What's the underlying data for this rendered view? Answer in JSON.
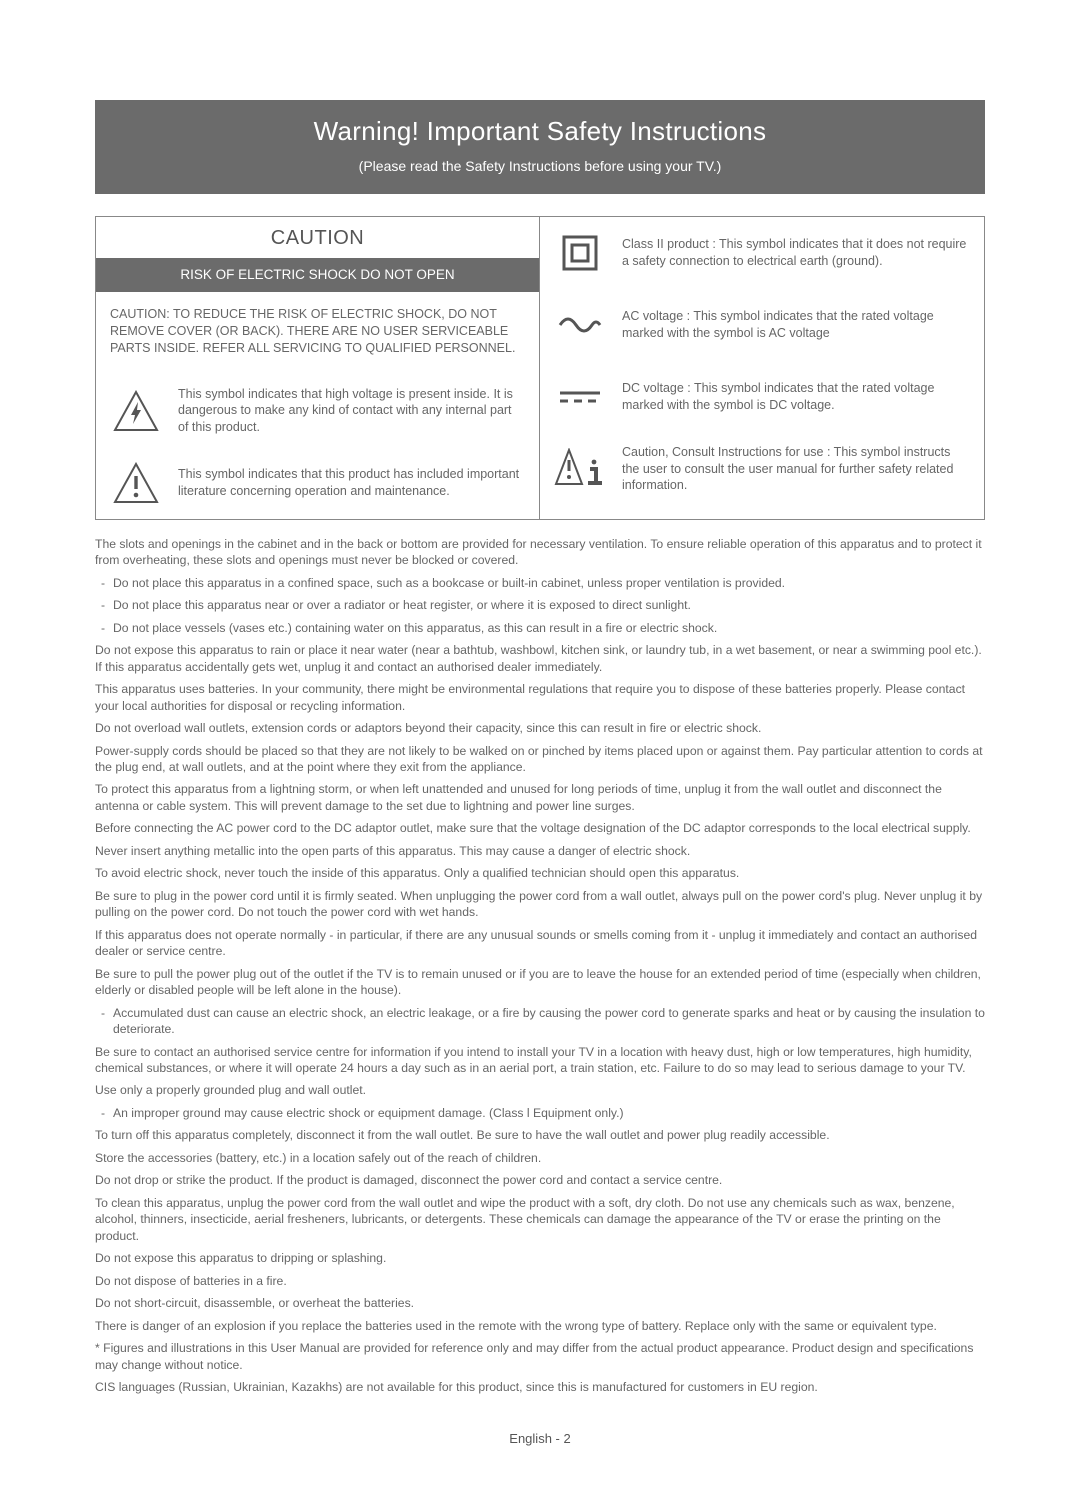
{
  "banner": {
    "title": "Warning! Important Safety Instructions",
    "subtitle": "(Please read the Safety Instructions before using your TV.)"
  },
  "caution": {
    "heading": "CAUTION",
    "bar": "RISK OF ELECTRIC SHOCK DO NOT OPEN",
    "text": "CAUTION: TO REDUCE THE RISK OF ELECTRIC SHOCK, DO NOT REMOVE COVER (OR BACK). THERE ARE NO USER SERVICEABLE PARTS INSIDE. REFER ALL SERVICING TO QUALIFIED PERSONNEL."
  },
  "left_symbols": [
    {
      "icon": "triangle-bolt",
      "text": "This symbol indicates that high voltage is present inside. It is dangerous to make any kind of contact with any internal part of this product."
    },
    {
      "icon": "triangle-excl",
      "text": "This symbol indicates that this product has included important literature concerning operation and maintenance."
    }
  ],
  "right_symbols": [
    {
      "icon": "class2",
      "text": "Class II product : This symbol indicates that it does not require a safety connection to electrical earth (ground)."
    },
    {
      "icon": "ac",
      "text": "AC voltage : This symbol indicates that the rated voltage marked with the symbol is AC voltage"
    },
    {
      "icon": "dc",
      "text": "DC voltage : This symbol indicates that the rated voltage marked with the symbol is DC voltage."
    },
    {
      "icon": "caution-info",
      "text": "Caution, Consult Instructions for use : This symbol instructs the user to consult the user manual for further safety related information."
    }
  ],
  "paragraphs": [
    {
      "t": "The slots and openings in the cabinet and in the back or bottom are provided for necessary ventilation. To ensure reliable operation of this apparatus and to protect it from overheating, these slots and openings must never be blocked or covered."
    },
    {
      "t": "Do not place this apparatus in a confined space, such as a bookcase or built-in cabinet, unless proper ventilation is provided.",
      "indent": true
    },
    {
      "t": "Do not place this apparatus near or over a radiator or heat register, or where it is exposed to direct sunlight.",
      "indent": true
    },
    {
      "t": "Do not place vessels (vases etc.) containing water on this apparatus, as this can result in a fire or electric shock.",
      "indent": true
    },
    {
      "t": "Do not expose this apparatus to rain or place it near water (near a bathtub, washbowl, kitchen sink, or laundry tub, in a wet basement, or near a swimming pool etc.). If this apparatus accidentally gets wet, unplug it and contact an authorised dealer immediately."
    },
    {
      "t": "This apparatus uses batteries. In your community, there might be environmental regulations that require you to dispose of these batteries properly. Please contact your local authorities for disposal or recycling information."
    },
    {
      "t": "Do not overload wall outlets, extension cords or adaptors beyond their capacity, since this can result in fire or electric shock."
    },
    {
      "t": "Power-supply cords should be placed so that they are not likely to be walked on or pinched by items placed upon or against them. Pay particular attention to cords at the plug end, at wall outlets, and at the point where they exit from the appliance."
    },
    {
      "t": "To protect this apparatus from a lightning storm, or when left unattended and unused for long periods of time, unplug it from the wall outlet and disconnect the antenna or cable system. This will prevent damage to the set due to lightning and power line surges."
    },
    {
      "t": "Before connecting the AC power cord to the DC adaptor outlet, make sure that the voltage designation of the DC adaptor corresponds to the local electrical supply."
    },
    {
      "t": "Never insert anything metallic into the open parts of this apparatus. This may cause a danger of electric shock."
    },
    {
      "t": "To avoid electric shock, never touch the inside of this apparatus. Only a qualified technician should open this apparatus."
    },
    {
      "t": "Be sure to plug in the power cord until it is firmly seated. When unplugging the power cord from a wall outlet, always pull on the power cord's plug. Never unplug it by pulling on the power cord. Do not touch the power cord with wet hands."
    },
    {
      "t": "If this apparatus does not operate normally - in particular, if there are any unusual sounds or smells coming from it - unplug it immediately and contact an authorised dealer or service centre."
    },
    {
      "t": "Be sure to pull the power plug out of the outlet if the TV is to remain unused or if you are to leave the house for an extended period of time (especially when children, elderly or disabled people will be left alone in the house)."
    },
    {
      "t": "Accumulated dust can cause an electric shock, an electric leakage, or a fire by causing the power cord to generate sparks and heat or by causing the insulation to deteriorate.",
      "indent": true
    },
    {
      "t": "Be sure to contact an authorised service centre for information if you intend to install your TV in a location with heavy dust, high or low temperatures, high humidity, chemical substances, or where it will operate 24 hours a day such as in an aerial port, a train station, etc. Failure to do so may lead to serious damage to your TV."
    },
    {
      "t": "Use only a properly grounded plug and wall outlet."
    },
    {
      "t": "An improper ground may cause electric shock or equipment damage. (Class l Equipment only.)",
      "indent": true
    },
    {
      "t": "To turn off this apparatus completely, disconnect it from the wall outlet. Be sure to have the wall outlet and power plug readily accessible."
    },
    {
      "t": "Store the accessories (battery, etc.) in a location safely out of the reach of children."
    },
    {
      "t": "Do not drop or strike the product. If the product is damaged, disconnect the power cord and contact a service centre."
    },
    {
      "t": "To clean this apparatus, unplug the power cord from the wall outlet and wipe the product with a soft, dry cloth. Do not use any chemicals such as wax, benzene, alcohol, thinners, insecticide, aerial fresheners, lubricants, or detergents. These chemicals can damage the appearance of the TV or erase the printing on the product."
    },
    {
      "t": "Do not expose this apparatus to dripping or splashing."
    },
    {
      "t": "Do not dispose of batteries in a fire."
    },
    {
      "t": "Do not short-circuit, disassemble, or overheat the batteries."
    },
    {
      "t": "There is danger of an explosion if you replace the batteries used in the remote with the wrong type of battery. Replace only with the same or equivalent type."
    },
    {
      "t": "* Figures and illustrations in this User Manual are provided for reference only and may differ from the actual product appearance. Product design and specifications may change without notice."
    },
    {
      "t": "CIS languages (Russian, Ukrainian, Kazakhs) are not available for this product, since this is manufactured for customers in EU region."
    }
  ],
  "footer": "English - 2",
  "colors": {
    "banner_bg": "#6b6b6b",
    "text": "#666666",
    "border": "#888888"
  }
}
